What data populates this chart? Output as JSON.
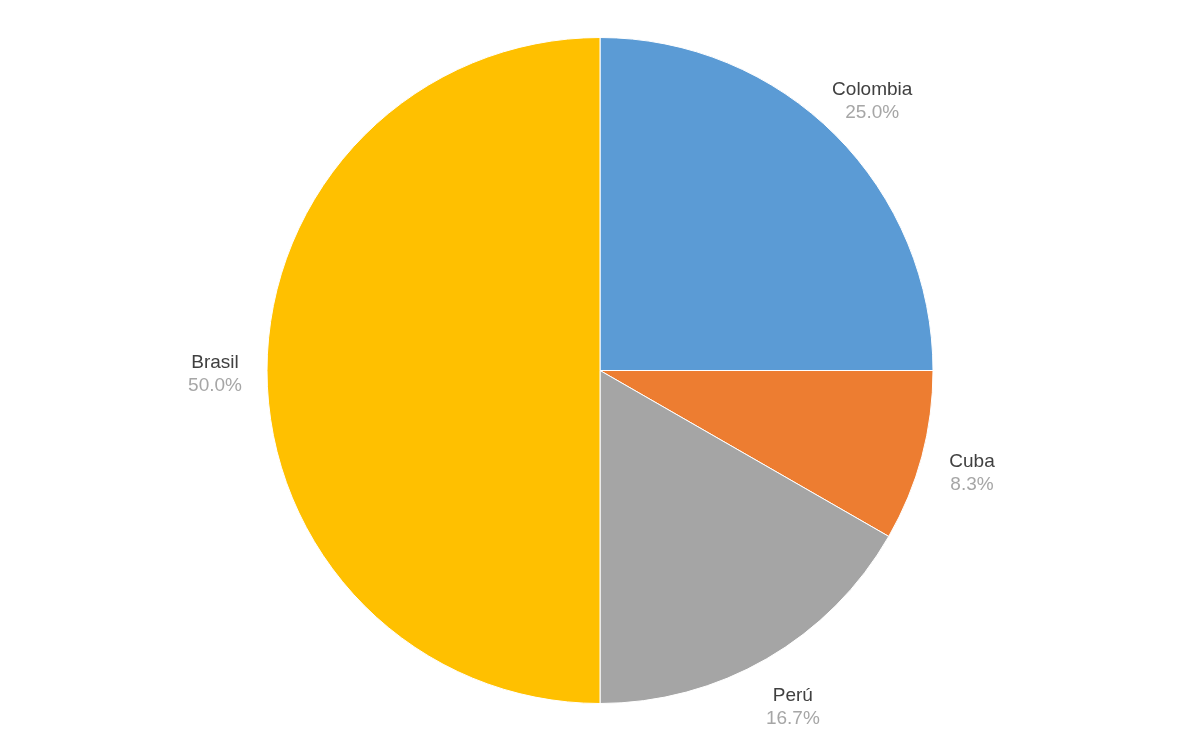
{
  "chart_data": {
    "type": "pie",
    "categories": [
      "Colombia",
      "Cuba",
      "Perú",
      "Brasil"
    ],
    "values": [
      25.0,
      8.3,
      16.7,
      50.0
    ],
    "colors": [
      "#5b9bd5",
      "#ed7d31",
      "#a5a5a5",
      "#ffc000"
    ],
    "value_labels": [
      "25.0%",
      "8.3%",
      "16.7%",
      "50.0%"
    ]
  }
}
